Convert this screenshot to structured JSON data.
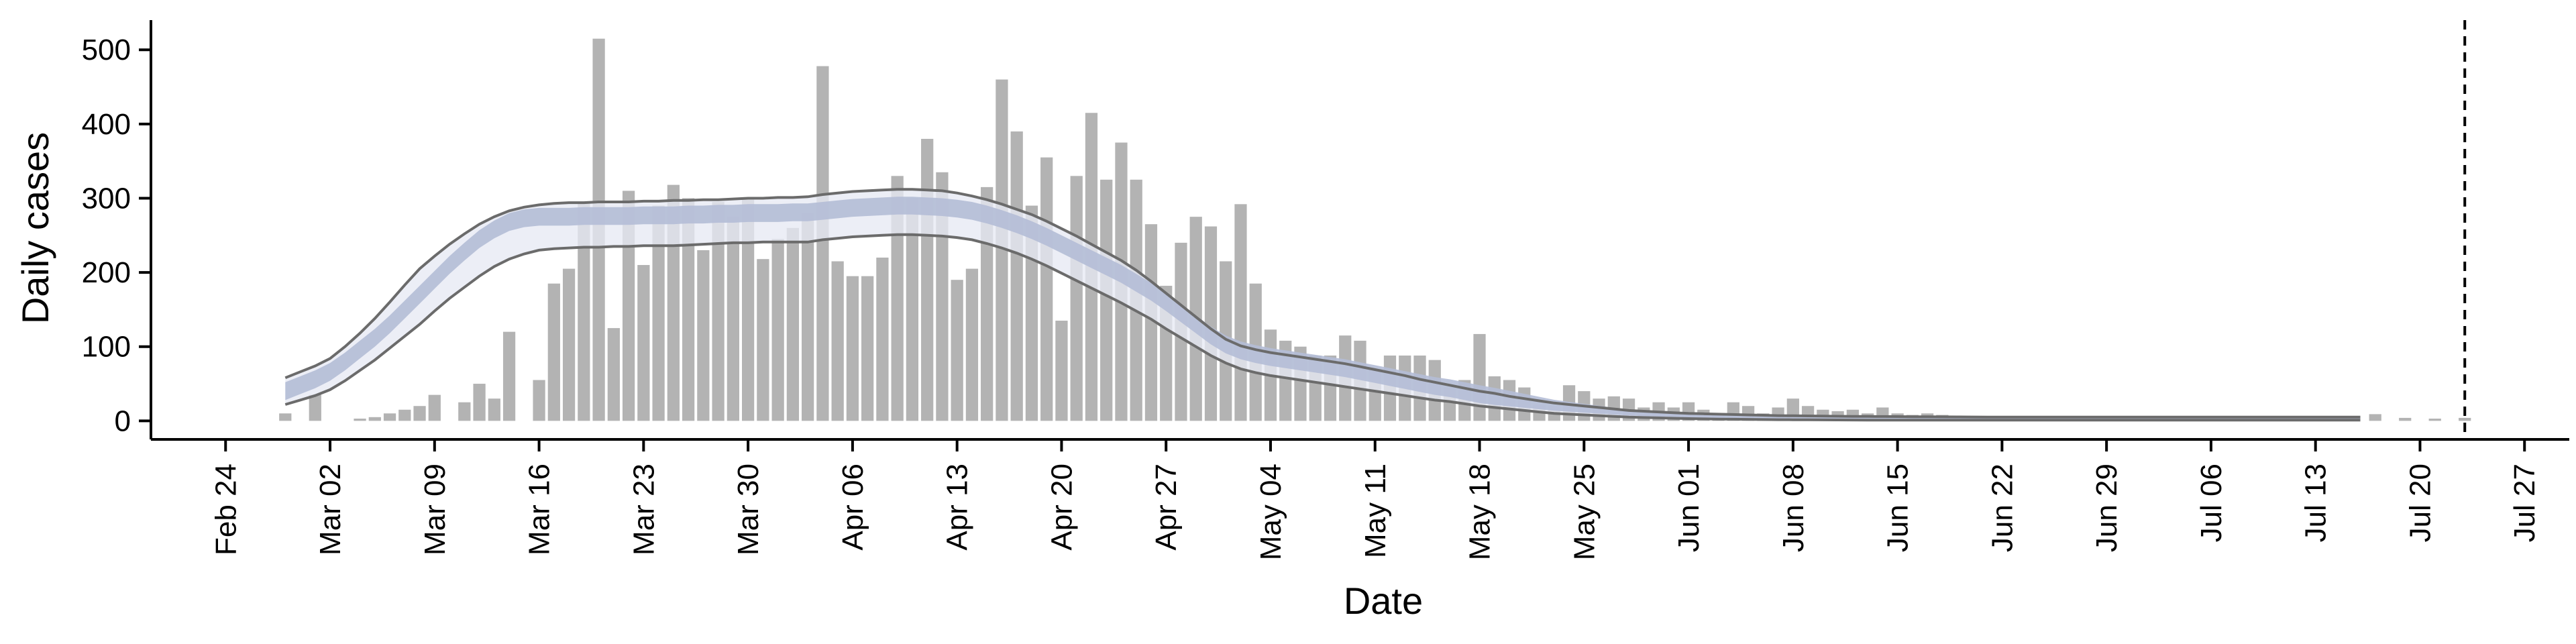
{
  "chart_data": {
    "type": "bar",
    "title": "",
    "xlabel": "Date",
    "ylabel": "Daily cases",
    "ylim": [
      -25,
      540
    ],
    "yticks": [
      0,
      100,
      200,
      300,
      400,
      500
    ],
    "x_axis": {
      "type": "date",
      "range": [
        "2020-02-19",
        "2020-07-30"
      ],
      "ticks": [
        {
          "date": "2020-02-24",
          "label": "Feb 24"
        },
        {
          "date": "2020-03-02",
          "label": "Mar 02"
        },
        {
          "date": "2020-03-09",
          "label": "Mar 09"
        },
        {
          "date": "2020-03-16",
          "label": "Mar 16"
        },
        {
          "date": "2020-03-23",
          "label": "Mar 23"
        },
        {
          "date": "2020-03-30",
          "label": "Mar 30"
        },
        {
          "date": "2020-04-06",
          "label": "Apr 06"
        },
        {
          "date": "2020-04-13",
          "label": "Apr 13"
        },
        {
          "date": "2020-04-20",
          "label": "Apr 20"
        },
        {
          "date": "2020-04-27",
          "label": "Apr 27"
        },
        {
          "date": "2020-05-04",
          "label": "May 04"
        },
        {
          "date": "2020-05-11",
          "label": "May 11"
        },
        {
          "date": "2020-05-18",
          "label": "May 18"
        },
        {
          "date": "2020-05-25",
          "label": "May 25"
        },
        {
          "date": "2020-06-01",
          "label": "Jun 01"
        },
        {
          "date": "2020-06-08",
          "label": "Jun 08"
        },
        {
          "date": "2020-06-15",
          "label": "Jun 15"
        },
        {
          "date": "2020-06-22",
          "label": "Jun 22"
        },
        {
          "date": "2020-06-29",
          "label": "Jun 29"
        },
        {
          "date": "2020-07-06",
          "label": "Jul 06"
        },
        {
          "date": "2020-07-13",
          "label": "Jul 13"
        },
        {
          "date": "2020-07-20",
          "label": "Jul 20"
        },
        {
          "date": "2020-07-27",
          "label": "Jul 27"
        }
      ]
    },
    "grid": false,
    "vline_date": "2020-07-23",
    "bars": {
      "start_date": "2020-02-28",
      "values": [
        10,
        0,
        35,
        0,
        0,
        3,
        5,
        10,
        15,
        20,
        35,
        0,
        25,
        50,
        30,
        120,
        0,
        55,
        185,
        205,
        295,
        515,
        125,
        310,
        210,
        290,
        318,
        300,
        230,
        295,
        275,
        300,
        218,
        245,
        260,
        280,
        478,
        215,
        195,
        195,
        220,
        330,
        300,
        380,
        335,
        190,
        205,
        315,
        460,
        390,
        290,
        355,
        135,
        330,
        415,
        325,
        375,
        325,
        265,
        182,
        240,
        275,
        262,
        215,
        292,
        185,
        123,
        108,
        100,
        88,
        88,
        115,
        108,
        70,
        88,
        88,
        88,
        82,
        45,
        55,
        117,
        60,
        55,
        45,
        22,
        20,
        48,
        40,
        30,
        33,
        30,
        18,
        25,
        18,
        25,
        15,
        10,
        25,
        20,
        10,
        18,
        30,
        20,
        15,
        13,
        15,
        10,
        18,
        10,
        8,
        10,
        8,
        6,
        5,
        5,
        5,
        4,
        3,
        3,
        4,
        5,
        3,
        4,
        3,
        4,
        3,
        4,
        3,
        2,
        2,
        1,
        1,
        1,
        1,
        0,
        0,
        0,
        0,
        2,
        0,
        9,
        0,
        4,
        0,
        3,
        0,
        4
      ]
    },
    "model": {
      "start_date": "2020-02-28",
      "step_days": 1,
      "median": [
        40,
        48,
        56,
        66,
        80,
        96,
        112,
        130,
        150,
        170,
        190,
        210,
        228,
        245,
        258,
        268,
        273,
        275,
        275,
        275,
        276,
        276,
        276,
        276,
        277,
        277,
        277,
        278,
        278,
        279,
        279,
        280,
        280,
        280,
        281,
        281,
        283,
        285,
        287,
        288,
        289,
        290,
        290,
        289,
        288,
        286,
        283,
        278,
        272,
        265,
        257,
        248,
        238,
        228,
        218,
        208,
        198,
        186,
        174,
        160,
        145,
        130,
        115,
        103,
        95,
        90,
        86,
        83,
        80,
        77,
        74,
        71,
        67,
        63,
        59,
        55,
        51,
        47,
        44,
        40,
        36,
        33,
        30,
        27,
        24,
        21,
        19,
        17,
        15,
        13,
        11,
        10,
        9,
        8,
        7,
        6.5,
        6,
        5.5,
        5,
        4.5,
        4,
        3.8,
        3.6,
        3.4,
        3.2,
        3,
        2.9,
        2.8,
        2.7,
        2.6,
        2.5,
        2.4,
        2.3,
        2.2,
        2.1,
        2,
        2,
        2,
        2,
        2,
        2,
        2,
        2,
        2,
        2,
        2,
        2,
        2,
        2,
        2,
        2,
        2,
        2,
        2,
        2,
        2,
        2,
        2,
        2,
        2
      ],
      "band_inner_halfwidth": 12,
      "upper": [
        58,
        66,
        74,
        84,
        100,
        118,
        138,
        160,
        183,
        205,
        222,
        238,
        252,
        265,
        275,
        283,
        288,
        291,
        293,
        294,
        294,
        295,
        295,
        295,
        296,
        296,
        297,
        297,
        298,
        298,
        299,
        300,
        300,
        301,
        301,
        302,
        305,
        307,
        309,
        310,
        311,
        312,
        312,
        311,
        310,
        307,
        303,
        298,
        292,
        285,
        278,
        269,
        259,
        249,
        238,
        227,
        216,
        203,
        188,
        172,
        156,
        140,
        124,
        110,
        101,
        96,
        92,
        89,
        86,
        83,
        80,
        77,
        73,
        69,
        65,
        61,
        56,
        52,
        48,
        44,
        40,
        37,
        33,
        30,
        27,
        24,
        22,
        20,
        18,
        16,
        14,
        13,
        12,
        11,
        10,
        9.5,
        9,
        8.5,
        8,
        7.5,
        7,
        6.8,
        6.6,
        6.4,
        6.2,
        6,
        5.9,
        5.8,
        5.7,
        5.6,
        5.5,
        5.4,
        5.3,
        5.2,
        5.1,
        5,
        5,
        5,
        5,
        5,
        5,
        5,
        5,
        5,
        5,
        5,
        5,
        5,
        5,
        5,
        5,
        5,
        5,
        5,
        5,
        5,
        5,
        5,
        5,
        5
      ],
      "lower": [
        22,
        28,
        34,
        42,
        54,
        68,
        82,
        98,
        114,
        130,
        148,
        165,
        180,
        195,
        208,
        218,
        225,
        230,
        232,
        233,
        234,
        234,
        235,
        235,
        236,
        236,
        236,
        237,
        238,
        239,
        240,
        240,
        241,
        241,
        241,
        241,
        244,
        246,
        248,
        249,
        250,
        251,
        251,
        250,
        249,
        247,
        244,
        239,
        233,
        226,
        218,
        209,
        199,
        189,
        179,
        169,
        159,
        148,
        137,
        124,
        112,
        100,
        88,
        78,
        70,
        65,
        61,
        58,
        55,
        52,
        49,
        46,
        43,
        40,
        37,
        34,
        31,
        28,
        26,
        23,
        20,
        18,
        16,
        14,
        12,
        10,
        9,
        8,
        7,
        6,
        5,
        4.5,
        4,
        3.5,
        3,
        2.7,
        2.4,
        2.2,
        2,
        1.8,
        1.6,
        1.5,
        1.4,
        1.3,
        1.2,
        1.1,
        1,
        1,
        1,
        1,
        1,
        1,
        1,
        1,
        1,
        1,
        1,
        1,
        1,
        1,
        1,
        1,
        1,
        1,
        1,
        1,
        1,
        1,
        1,
        1,
        1,
        1,
        1,
        1,
        1,
        1,
        1,
        1,
        1,
        1
      ]
    },
    "colors": {
      "bar": "#b3b3b3",
      "outer_band": "#e7e9f3",
      "inner_band": "#b4bdd6",
      "ci_line": "#6b6b6b",
      "axis": "#000000",
      "vline": "#000000"
    }
  }
}
